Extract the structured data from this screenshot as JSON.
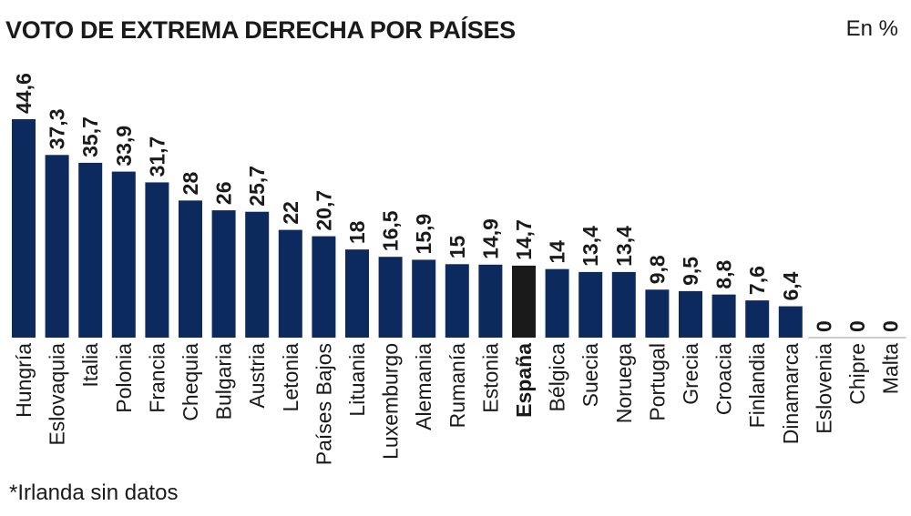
{
  "header": {
    "title": "VOTO DE EXTREMA DERECHA POR PAÍSES",
    "unit": "En %"
  },
  "footnote": "*Irlanda sin datos",
  "colors": {
    "bar": "#0d2a5e",
    "highlight": "#1a1a1a",
    "baseline": "#999999"
  },
  "chart_data": {
    "type": "bar",
    "title": "VOTO DE EXTREMA DERECHA POR PAÍSES",
    "ylabel": "En %",
    "xlabel": "",
    "ylim": [
      0,
      44.6
    ],
    "grid": false,
    "highlight": "España",
    "categories": [
      "Hungría",
      "Eslovaquia",
      "Italia",
      "Polonia",
      "Francia",
      "Chequia",
      "Bulgaria",
      "Austria",
      "Letonia",
      "Países Bajos",
      "Lituania",
      "Luxemburgo",
      "Alemania",
      "Rumanía",
      "Estonia",
      "España",
      "Bélgica",
      "Suecia",
      "Noruega",
      "Portugal",
      "Grecia",
      "Croacia",
      "Finlandia",
      "Dinamarca",
      "Eslovenia",
      "Chipre",
      "Malta"
    ],
    "values": [
      44.6,
      37.3,
      35.7,
      33.9,
      31.7,
      28,
      26,
      25.7,
      22,
      20.7,
      18,
      16.5,
      15.9,
      15,
      14.9,
      14.7,
      14,
      13.4,
      13.4,
      9.8,
      9.5,
      8.8,
      7.6,
      6.4,
      0,
      0,
      0
    ],
    "value_labels": [
      "44,6",
      "37,3",
      "35,7",
      "33,9",
      "31,7",
      "28",
      "26",
      "25,7",
      "22",
      "20,7",
      "18",
      "16,5",
      "15,9",
      "15",
      "14,9",
      "14,7",
      "14",
      "13,4",
      "13,4",
      "9,8",
      "9,5",
      "8,8",
      "7,6",
      "6,4",
      "0",
      "0",
      "0"
    ]
  }
}
